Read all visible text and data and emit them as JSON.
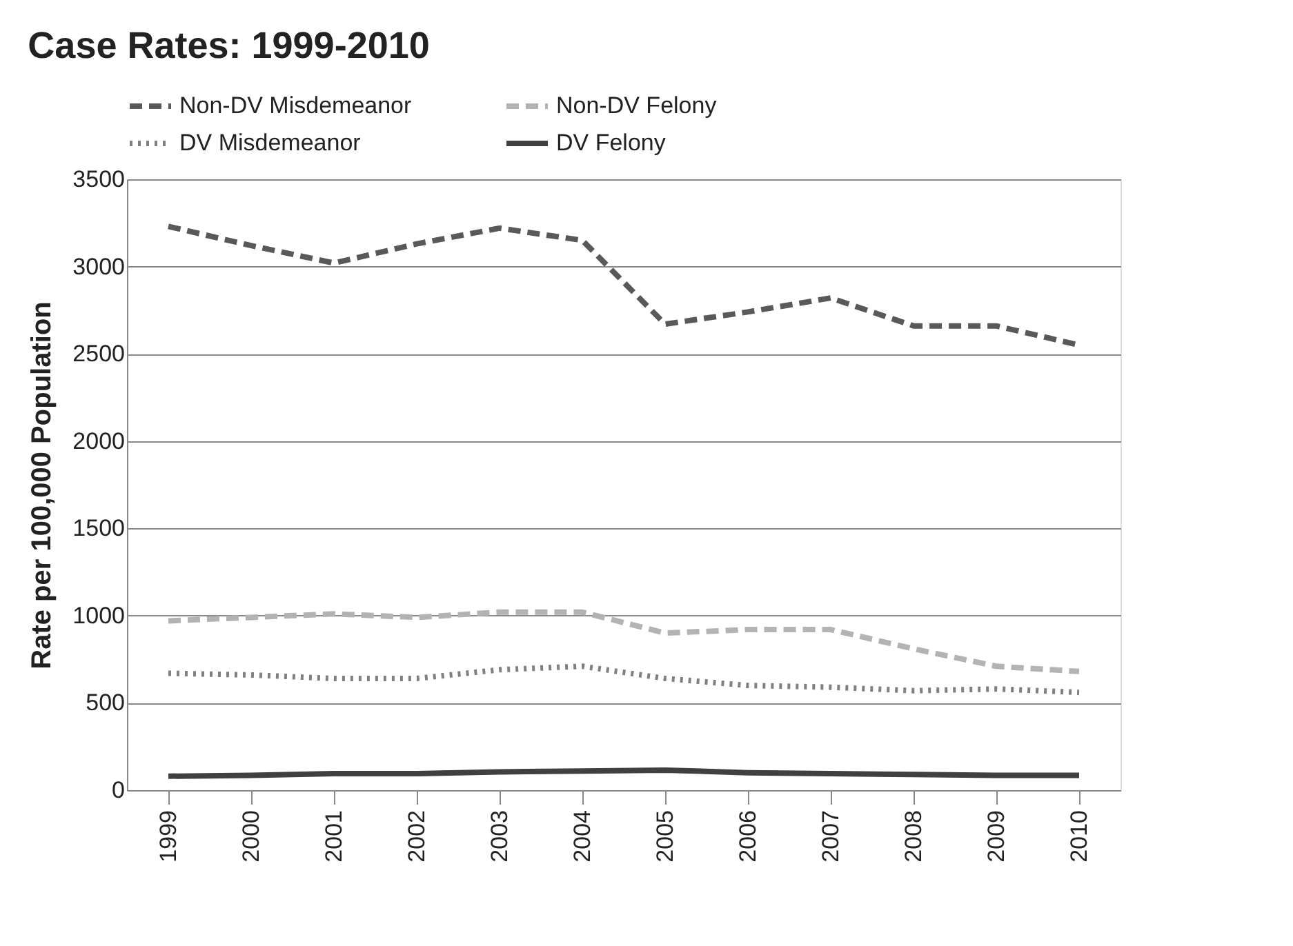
{
  "chart_data": {
    "type": "line",
    "title": "Case Rates: 1999-2010",
    "ylabel": "Rate per 100,000 Population",
    "categories": [
      "1999",
      "2000",
      "2001",
      "2002",
      "2003",
      "2004",
      "2005",
      "2006",
      "2007",
      "2008",
      "2009",
      "2010"
    ],
    "series": [
      {
        "name": "Non-DV Misdemeanor",
        "color": "#595959",
        "line_style": "dashed",
        "values": [
          3230,
          3120,
          3020,
          3130,
          3220,
          3150,
          2670,
          2740,
          2820,
          2660,
          2660,
          2550
        ]
      },
      {
        "name": "Non-DV Felony",
        "color": "#b3b3b3",
        "line_style": "dashed",
        "values": [
          970,
          990,
          1010,
          990,
          1020,
          1020,
          900,
          920,
          920,
          810,
          710,
          680
        ]
      },
      {
        "name": "DV Misdemeanor",
        "color": "#808080",
        "line_style": "dotted",
        "values": [
          670,
          660,
          640,
          640,
          690,
          710,
          640,
          600,
          590,
          570,
          580,
          560
        ]
      },
      {
        "name": "DV Felony",
        "color": "#404040",
        "line_style": "solid",
        "values": [
          80,
          85,
          95,
          95,
          105,
          110,
          115,
          100,
          95,
          90,
          85,
          85
        ]
      }
    ],
    "ylim": [
      0,
      3500
    ],
    "yticks": [
      0,
      500,
      1000,
      1500,
      2000,
      2500,
      3000,
      3500
    ],
    "grid": "y",
    "legend": "top",
    "marker": "none"
  }
}
